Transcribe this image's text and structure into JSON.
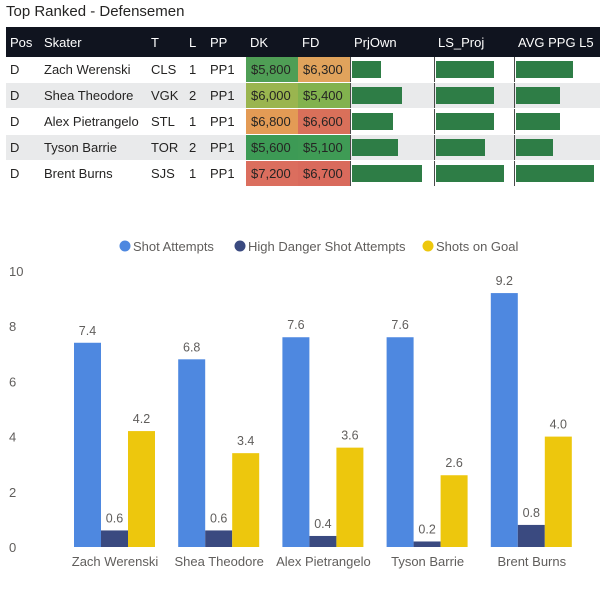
{
  "page_title": "Top Ranked - Defensemen",
  "table": {
    "columns": [
      "Pos",
      "Skater",
      "T",
      "L",
      "PP",
      "DK",
      "FD",
      "PrjOwn",
      "LS_Proj",
      "AVG PPG L5"
    ],
    "rows": [
      {
        "pos": "D",
        "skater": "Zach Werenski",
        "team": "CLS",
        "line": "1",
        "pp": "PP1",
        "dk": "$5,800",
        "fd": "$6,300",
        "dk_color": "#4f9e55",
        "fd_color": "#e0a35c",
        "prjown": 0.42,
        "ls_proj": 0.85,
        "avg_ppg_l5": 0.73
      },
      {
        "pos": "D",
        "skater": "Shea Theodore",
        "team": "VGK",
        "line": "2",
        "pp": "PP1",
        "dk": "$6,000",
        "fd": "$5,400",
        "dk_color": "#9ab54f",
        "fd_color": "#82b24e",
        "prjown": 0.72,
        "ls_proj": 0.86,
        "avg_ppg_l5": 0.56
      },
      {
        "pos": "D",
        "skater": "Alex Pietrangelo",
        "team": "STL",
        "line": "1",
        "pp": "PP1",
        "dk": "$6,800",
        "fd": "$6,600",
        "dk_color": "#e39b55",
        "fd_color": "#d9705a",
        "prjown": 0.58,
        "ls_proj": 0.86,
        "avg_ppg_l5": 0.57
      },
      {
        "pos": "D",
        "skater": "Tyson Barrie",
        "team": "TOR",
        "line": "2",
        "pp": "PP1",
        "dk": "$5,600",
        "fd": "$5,100",
        "dk_color": "#3d9a55",
        "fd_color": "#3f9b55",
        "prjown": 0.66,
        "ls_proj": 0.72,
        "avg_ppg_l5": 0.47
      },
      {
        "pos": "D",
        "skater": "Brent Burns",
        "team": "SJS",
        "line": "1",
        "pp": "PP1",
        "dk": "$7,200",
        "fd": "$6,700",
        "dk_color": "#db6e5e",
        "fd_color": "#d96a5c",
        "prjown": 1.0,
        "ls_proj": 1.0,
        "avg_ppg_l5": 1.0
      }
    ]
  },
  "chart_data": {
    "type": "bar",
    "categories": [
      "Zach Werenski",
      "Shea Theodore",
      "Alex Pietrangelo",
      "Tyson Barrie",
      "Brent Burns"
    ],
    "series": [
      {
        "name": "Shot Attempts",
        "color": "#4e88e0",
        "values": [
          7.4,
          6.8,
          7.6,
          7.6,
          9.2
        ]
      },
      {
        "name": "High Danger Shot Attempts",
        "color": "#3a4a80",
        "values": [
          0.6,
          0.6,
          0.4,
          0.2,
          0.8
        ]
      },
      {
        "name": "Shots on Goal",
        "color": "#edc70d",
        "values": [
          4.2,
          3.4,
          3.6,
          2.6,
          4.0
        ]
      }
    ],
    "yticks": [
      "0",
      "2",
      "4",
      "6",
      "8",
      "10"
    ],
    "ylim": [
      0,
      10
    ],
    "title": "",
    "xlabel": "",
    "ylabel": "",
    "legend": "top-center",
    "grid": false
  }
}
